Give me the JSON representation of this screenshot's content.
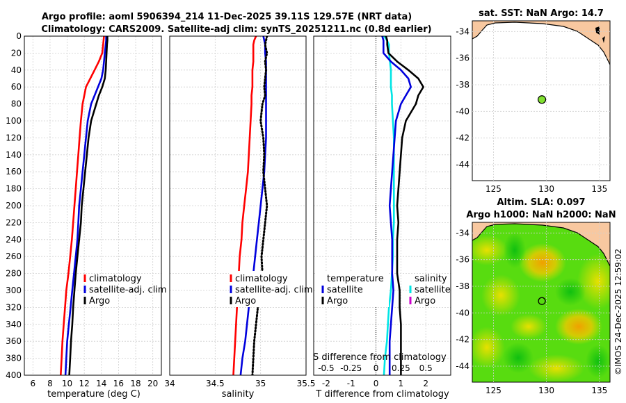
{
  "header": {
    "title_line1": "Argo profile: aoml 5906394_214 11-Dec-2025 39.11S 129.57E (NRT data)",
    "title_line2": "Climatology: CARS2009. Satellite-adj clim: synTS_20251211.nc (0.8d earlier)"
  },
  "colors": {
    "climatology": "#ff0000",
    "satellite": "#0000dd",
    "argo": "#000000",
    "t_sat": "#00e5e5",
    "s_sat": "#cc00cc",
    "land": "#f8c8a0",
    "float_marker": "#80e030"
  },
  "chart_data": [
    {
      "type": "line",
      "name": "temperature",
      "xlabel": "temperature (deg C)",
      "xlim": [
        5,
        21
      ],
      "ylim": [
        0,
        400
      ],
      "xticks": [
        "6",
        "8",
        "10",
        "12",
        "14",
        "16",
        "18",
        "20"
      ],
      "yticks": [
        "0",
        "20",
        "40",
        "60",
        "80",
        "100",
        "120",
        "140",
        "160",
        "180",
        "200",
        "220",
        "240",
        "260",
        "280",
        "300",
        "320",
        "340",
        "360",
        "380",
        "400"
      ],
      "depth": [
        0,
        5,
        10,
        20,
        30,
        40,
        50,
        60,
        70,
        80,
        100,
        120,
        140,
        160,
        180,
        200,
        220,
        240,
        260,
        280,
        300,
        320,
        340,
        360,
        380,
        400
      ],
      "legend": [
        "climatology",
        "satellite-adj. clim",
        "Argo"
      ],
      "series": [
        {
          "name": "climatology",
          "values": [
            14.3,
            14.25,
            14.2,
            14.1,
            13.7,
            13.2,
            12.7,
            12.2,
            12.0,
            11.8,
            11.6,
            11.45,
            11.3,
            11.15,
            11.0,
            10.85,
            10.7,
            10.55,
            10.35,
            10.15,
            9.9,
            9.75,
            9.6,
            9.45,
            9.35,
            9.25
          ]
        },
        {
          "name": "satellite-adj. clim",
          "values": [
            14.55,
            14.55,
            14.5,
            14.4,
            14.3,
            14.2,
            14.0,
            13.6,
            13.2,
            12.8,
            12.4,
            12.2,
            12.0,
            11.8,
            11.6,
            11.4,
            11.3,
            11.2,
            11.0,
            10.8,
            10.6,
            10.4,
            10.2,
            10.0,
            9.9,
            9.8
          ]
        },
        {
          "name": "Argo",
          "values": [
            14.7,
            14.7,
            14.65,
            14.6,
            14.55,
            14.5,
            14.4,
            14.1,
            13.7,
            13.4,
            12.8,
            12.5,
            12.3,
            12.1,
            11.9,
            11.7,
            11.6,
            11.4,
            11.2,
            11.0,
            10.85,
            10.7,
            10.6,
            10.45,
            10.35,
            10.25
          ]
        }
      ]
    },
    {
      "type": "line",
      "name": "salinity",
      "xlabel": "salinity",
      "xlim": [
        34,
        35.5
      ],
      "ylim": [
        0,
        400
      ],
      "xticks": [
        "34",
        "34.5",
        "35",
        "35.5"
      ],
      "depth": [
        0,
        5,
        10,
        20,
        30,
        40,
        50,
        60,
        70,
        80,
        100,
        120,
        140,
        160,
        180,
        200,
        220,
        240,
        260,
        280,
        300,
        320,
        340,
        360,
        380,
        400
      ],
      "legend": [
        "climatology",
        "satellite-adj. clim",
        "Argo"
      ],
      "series": [
        {
          "name": "climatology",
          "values": [
            34.95,
            34.93,
            34.92,
            34.92,
            34.92,
            34.91,
            34.91,
            34.91,
            34.9,
            34.9,
            34.89,
            34.88,
            34.87,
            34.86,
            34.84,
            34.82,
            34.8,
            34.79,
            34.77,
            34.76,
            34.75,
            34.74,
            34.73,
            34.72,
            34.71,
            34.7
          ]
        },
        {
          "name": "satellite-adj. clim",
          "values": [
            35.03,
            35.04,
            35.05,
            35.05,
            35.06,
            35.06,
            35.06,
            35.06,
            35.06,
            35.06,
            35.06,
            35.06,
            35.05,
            35.04,
            35.02,
            35.0,
            34.98,
            34.96,
            34.94,
            34.92,
            34.9,
            34.87,
            34.85,
            34.83,
            34.8,
            34.78
          ]
        },
        {
          "name": "Argo",
          "values": [
            35.07,
            35.06,
            35.05,
            35.07,
            35.05,
            35.06,
            35.05,
            35.04,
            35.05,
            35.02,
            35.0,
            35.03,
            35.04,
            35.03,
            35.05,
            35.07,
            35.05,
            35.03,
            35.01,
            35.02,
            34.98,
            34.97,
            34.95,
            34.93,
            34.92,
            34.91
          ]
        }
      ]
    },
    {
      "type": "line",
      "name": "difference from climatology",
      "xlabel": "T difference from climatology",
      "secondary_xlabel": "S difference from climatology",
      "xlim": [
        -2.5,
        3
      ],
      "ylim": [
        0,
        400
      ],
      "xticks": [
        "-2",
        "-1",
        "0",
        "1",
        "2"
      ],
      "secondary_xticks": [
        "-0.5",
        "-0.25",
        "0",
        "0.25",
        "0.5"
      ],
      "depth": [
        0,
        5,
        10,
        20,
        30,
        40,
        50,
        60,
        70,
        80,
        100,
        120,
        140,
        160,
        180,
        200,
        220,
        240,
        260,
        280,
        300,
        320,
        340,
        360,
        380,
        400
      ],
      "legend_t": [
        "temperature",
        "satellite",
        "Argo"
      ],
      "legend_s": [
        "salinity",
        "satellite",
        "Argo"
      ],
      "series": [
        {
          "name": "T satellite",
          "values": [
            0.25,
            0.3,
            0.3,
            0.3,
            0.6,
            1.0,
            1.3,
            1.4,
            1.2,
            1.0,
            0.8,
            0.75,
            0.7,
            0.65,
            0.6,
            0.55,
            0.6,
            0.65,
            0.65,
            0.65,
            0.7,
            0.65,
            0.6,
            0.55,
            0.55,
            0.55
          ]
        },
        {
          "name": "T Argo",
          "values": [
            0.4,
            0.45,
            0.45,
            0.5,
            0.85,
            1.3,
            1.7,
            1.9,
            1.7,
            1.6,
            1.2,
            1.05,
            1.0,
            0.95,
            0.9,
            0.85,
            0.9,
            0.85,
            0.85,
            0.85,
            0.95,
            0.95,
            1.0,
            1.0,
            1.0,
            1.0
          ]
        },
        {
          "name": "S satellite",
          "values": [
            0.08,
            0.11,
            0.13,
            0.13,
            0.14,
            0.15,
            0.15,
            0.15,
            0.16,
            0.16,
            0.17,
            0.18,
            0.18,
            0.18,
            0.18,
            0.18,
            0.18,
            0.17,
            0.17,
            0.16,
            0.15,
            0.13,
            0.12,
            0.11,
            0.09,
            0.08
          ]
        }
      ]
    },
    {
      "type": "map",
      "name": "sat SST map",
      "title": "sat. SST: NaN Argo: 14.7",
      "xlim": [
        123,
        136
      ],
      "ylim": [
        -45.2,
        -33.2
      ],
      "xticks": [
        "125",
        "130",
        "135"
      ],
      "yticks": [
        "-34",
        "-36",
        "-38",
        "-40",
        "-42",
        "-44"
      ],
      "float_lon": 129.57,
      "float_lat": -39.11
    },
    {
      "type": "map",
      "name": "altimetry map",
      "title_line1": "Altim. SLA: 0.097",
      "title_line2": "Argo h1000: NaN h2000: NaN",
      "xlim": [
        123,
        136
      ],
      "ylim": [
        -45.2,
        -33.2
      ],
      "xticks": [
        "125",
        "130",
        "135"
      ],
      "yticks": [
        "-34",
        "-36",
        "-38",
        "-40",
        "-42",
        "-44"
      ],
      "float_lon": 129.57,
      "float_lat": -39.11
    }
  ],
  "watermark": "©IMOS 24-Dec-2025 12:59:02"
}
